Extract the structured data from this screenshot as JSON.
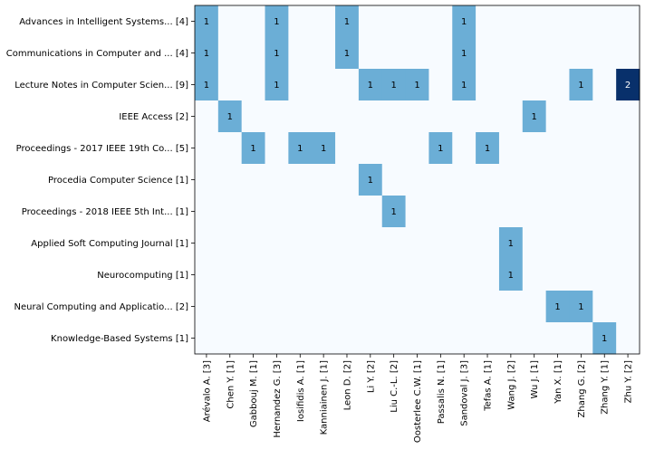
{
  "chart_data": {
    "type": "heatmap",
    "rows": [
      "Advances in Intelligent Systems... [4]",
      "Communications in Computer and ... [4]",
      "Lecture Notes in Computer Scien... [9]",
      "IEEE Access [2]",
      "Proceedings - 2017 IEEE 19th Co... [5]",
      "Procedia Computer Science [1]",
      "Proceedings - 2018 IEEE 5th Int... [1]",
      "Applied Soft Computing Journal [1]",
      "Neurocomputing [1]",
      "Neural Computing and Applicatio... [2]",
      "Knowledge-Based Systems [1]"
    ],
    "columns": [
      "Arévalo A. [3]",
      "Chen Y. [1]",
      "Gabbouj M. [1]",
      "Hernandez G. [3]",
      "Iosifidis A. [1]",
      "Kanniainen J. [1]",
      "Leon D. [2]",
      "Li Y. [2]",
      "Liu C.-L. [2]",
      "Oosterlee C.W. [1]",
      "Passalis N. [1]",
      "Sandoval J. [3]",
      "Tefas A. [1]",
      "Wang J. [2]",
      "Wu J. [1]",
      "Yan X. [1]",
      "Zhang G. [2]",
      "Zhang Y. [1]",
      "Zhu Y. [2]"
    ],
    "values": [
      [
        1,
        0,
        0,
        1,
        0,
        0,
        1,
        0,
        0,
        0,
        0,
        1,
        0,
        0,
        0,
        0,
        0,
        0,
        0
      ],
      [
        1,
        0,
        0,
        1,
        0,
        0,
        1,
        0,
        0,
        0,
        0,
        1,
        0,
        0,
        0,
        0,
        0,
        0,
        0
      ],
      [
        1,
        0,
        0,
        1,
        0,
        0,
        0,
        1,
        1,
        1,
        0,
        1,
        0,
        0,
        0,
        0,
        1,
        0,
        2
      ],
      [
        0,
        1,
        0,
        0,
        0,
        0,
        0,
        0,
        0,
        0,
        0,
        0,
        0,
        0,
        1,
        0,
        0,
        0,
        0
      ],
      [
        0,
        0,
        1,
        0,
        1,
        1,
        0,
        0,
        0,
        0,
        1,
        0,
        1,
        0,
        0,
        0,
        0,
        0,
        0
      ],
      [
        0,
        0,
        0,
        0,
        0,
        0,
        0,
        1,
        0,
        0,
        0,
        0,
        0,
        0,
        0,
        0,
        0,
        0,
        0
      ],
      [
        0,
        0,
        0,
        0,
        0,
        0,
        0,
        0,
        1,
        0,
        0,
        0,
        0,
        0,
        0,
        0,
        0,
        0,
        0
      ],
      [
        0,
        0,
        0,
        0,
        0,
        0,
        0,
        0,
        0,
        0,
        0,
        0,
        0,
        1,
        0,
        0,
        0,
        0,
        0
      ],
      [
        0,
        0,
        0,
        0,
        0,
        0,
        0,
        0,
        0,
        0,
        0,
        0,
        0,
        1,
        0,
        0,
        0,
        0,
        0
      ],
      [
        0,
        0,
        0,
        0,
        0,
        0,
        0,
        0,
        0,
        0,
        0,
        0,
        0,
        0,
        0,
        1,
        1,
        0,
        0
      ],
      [
        0,
        0,
        0,
        0,
        0,
        0,
        0,
        0,
        0,
        0,
        0,
        0,
        0,
        0,
        0,
        0,
        0,
        1,
        0
      ]
    ],
    "colors": {
      "zero": "#f7fbff",
      "one": "#6baed6",
      "two": "#08306b",
      "text_light": "#000000",
      "text_dark": "#ffffff"
    }
  }
}
